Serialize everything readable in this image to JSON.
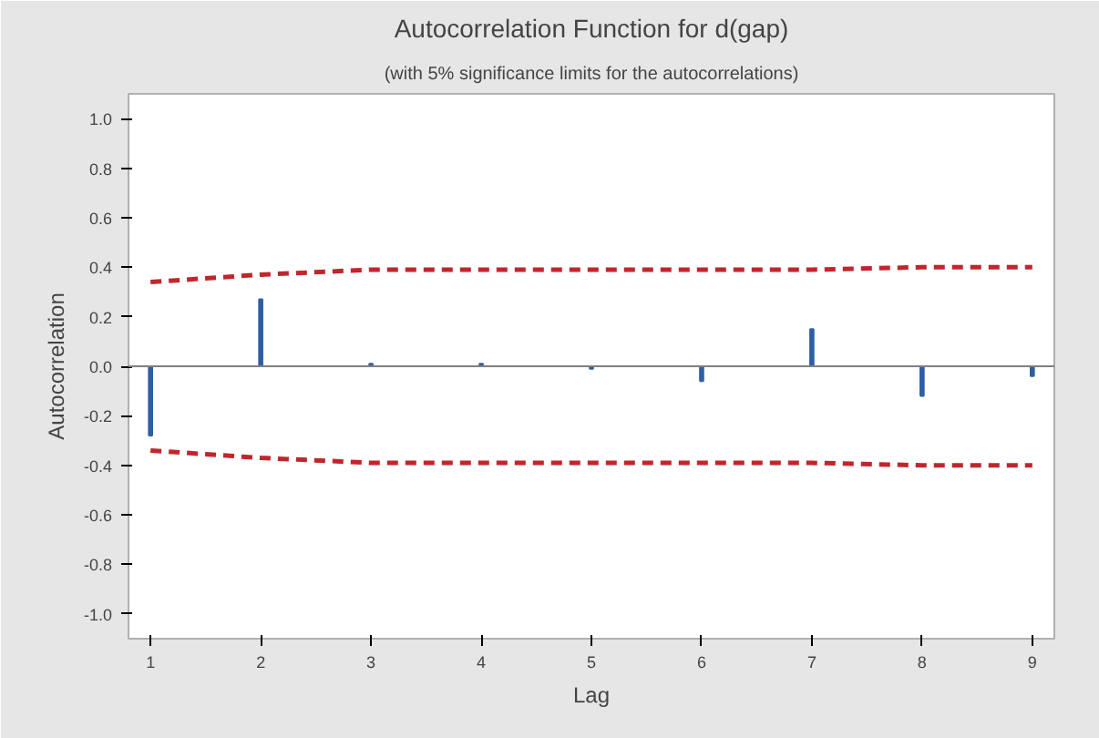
{
  "chart_data": {
    "type": "bar",
    "title": "Autocorrelation Function for d(gap)",
    "subtitle": "(with 5% significance limits for the autocorrelations)",
    "xlabel": "Lag",
    "ylabel": "Autocorrelation",
    "x": [
      1,
      2,
      3,
      4,
      5,
      6,
      7,
      8,
      9
    ],
    "series": [
      {
        "color": "#2e5fa3",
        "values": [
          -0.28,
          0.27,
          0.01,
          0.01,
          -0.01,
          -0.06,
          0.15,
          -0.12,
          -0.04
        ]
      },
      {
        "type": "line",
        "color": "#c0262d",
        "line_style": "dashed",
        "values": [
          0.34,
          0.37,
          0.39,
          0.39,
          0.39,
          0.39,
          0.39,
          0.4,
          0.4
        ]
      },
      {
        "type": "line",
        "color": "#c0262d",
        "line_style": "dashed",
        "values": [
          -0.34,
          -0.37,
          -0.39,
          -0.39,
          -0.39,
          -0.39,
          -0.39,
          -0.4,
          -0.4
        ]
      }
    ],
    "xlim": [
      0.8,
      9.2
    ],
    "ylim": [
      -1.1,
      1.1
    ],
    "xticks": [
      1,
      2,
      3,
      4,
      5,
      6,
      7,
      8,
      9
    ],
    "yticks": [
      {
        "value": -1,
        "label": "-1.0"
      },
      {
        "value": -0.8,
        "label": "-0.8"
      },
      {
        "value": -0.6,
        "label": "-0.6"
      },
      {
        "value": -0.4,
        "label": "-0.4"
      },
      {
        "value": -0.2,
        "label": "-0.2"
      },
      {
        "value": 0,
        "label": "0.0"
      },
      {
        "value": 0.2,
        "label": "0.2"
      },
      {
        "value": 0.4,
        "label": "0.4"
      },
      {
        "value": 0.6,
        "label": "0.6"
      },
      {
        "value": 0.8,
        "label": "0.8"
      },
      {
        "value": 1,
        "label": "1.0"
      }
    ],
    "ref_lines": [
      {
        "axis": "y",
        "value": 0,
        "color": "#808080",
        "line_style": "solid"
      }
    ],
    "grid": false
  }
}
